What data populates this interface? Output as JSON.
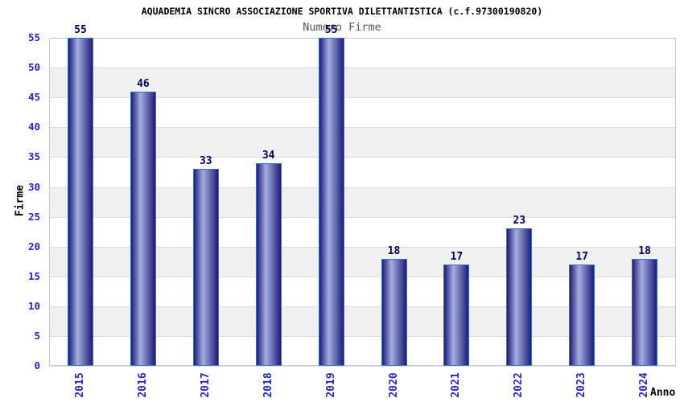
{
  "chart_data": {
    "type": "bar",
    "title": "AQUADEMIA SINCRO ASSOCIAZIONE SPORTIVA DILETTANTISTICA (c.f.97300190820)",
    "subtitle": "Numero Firme",
    "categories": [
      "2015",
      "2016",
      "2017",
      "2018",
      "2019",
      "2020",
      "2021",
      "2022",
      "2023",
      "2024"
    ],
    "values": [
      55,
      46,
      33,
      34,
      55,
      18,
      17,
      23,
      17,
      18
    ],
    "xlabel": "Anno",
    "ylabel": "Firme",
    "ylim": [
      0,
      55
    ],
    "ytick_step": 5,
    "yticks": [
      0,
      5,
      10,
      15,
      20,
      25,
      30,
      35,
      40,
      45,
      50,
      55
    ],
    "grid": true,
    "legend_position": "none",
    "value_labels_shown": true,
    "colors": {
      "bar_gradient_edge": "#1c1c78",
      "bar_gradient_mid": "#a4aedf",
      "bar_border": "#3c6ccc",
      "value_label": "#00005a",
      "axis_tick_label": "#2525cc",
      "band_fill": "#f0f0f0",
      "gridline": "#dcdcdc",
      "plot_border": "#c6c6c6",
      "title_text": "#000000",
      "subtitle_text": "#555555"
    }
  }
}
